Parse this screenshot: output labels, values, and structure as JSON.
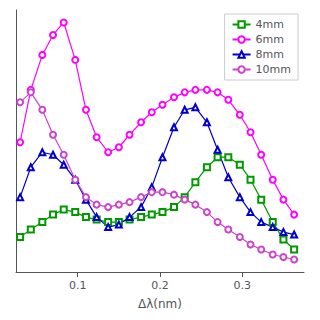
{
  "chart_data": {
    "type": "line",
    "xlabel": "Δλ(nm)",
    "xlim": [
      0.025,
      0.375
    ],
    "xticks": [
      0.1,
      0.2,
      0.3
    ],
    "ylim": [
      0.0,
      1.05
    ],
    "tick_labels": "x",
    "grid": false,
    "legend": "upper right",
    "x": [
      0.03,
      0.043,
      0.057,
      0.07,
      0.083,
      0.097,
      0.11,
      0.123,
      0.137,
      0.15,
      0.163,
      0.177,
      0.19,
      0.203,
      0.217,
      0.23,
      0.243,
      0.257,
      0.27,
      0.283,
      0.297,
      0.31,
      0.323,
      0.337,
      0.35,
      0.363
    ],
    "series": [
      {
        "name": "4mm",
        "color": "#009900",
        "marker": "square",
        "values": [
          0.14,
          0.17,
          0.2,
          0.23,
          0.25,
          0.24,
          0.22,
          0.21,
          0.2,
          0.2,
          0.21,
          0.22,
          0.23,
          0.24,
          0.26,
          0.3,
          0.36,
          0.42,
          0.46,
          0.46,
          0.43,
          0.37,
          0.29,
          0.2,
          0.13,
          0.09
        ]
      },
      {
        "name": "6mm",
        "color": "#ff00ff",
        "marker": "circle",
        "values": [
          0.52,
          0.73,
          0.87,
          0.95,
          1.0,
          0.85,
          0.65,
          0.54,
          0.48,
          0.5,
          0.55,
          0.6,
          0.64,
          0.67,
          0.7,
          0.72,
          0.73,
          0.73,
          0.72,
          0.69,
          0.63,
          0.56,
          0.47,
          0.37,
          0.29,
          0.23
        ]
      },
      {
        "name": "8mm",
        "color": "#0000cc",
        "marker": "triangle",
        "values": [
          0.3,
          0.42,
          0.48,
          0.47,
          0.43,
          0.37,
          0.29,
          0.22,
          0.18,
          0.19,
          0.22,
          0.26,
          0.34,
          0.46,
          0.58,
          0.65,
          0.66,
          0.6,
          0.49,
          0.38,
          0.3,
          0.24,
          0.2,
          0.18,
          0.16,
          0.15
        ]
      },
      {
        "name": "10mm",
        "color": "#cc44cc",
        "marker": "circle",
        "values": [
          0.68,
          0.72,
          0.65,
          0.55,
          0.47,
          0.37,
          0.3,
          0.27,
          0.26,
          0.27,
          0.28,
          0.3,
          0.32,
          0.32,
          0.31,
          0.29,
          0.27,
          0.24,
          0.2,
          0.17,
          0.14,
          0.11,
          0.09,
          0.07,
          0.06,
          0.05
        ]
      }
    ]
  }
}
